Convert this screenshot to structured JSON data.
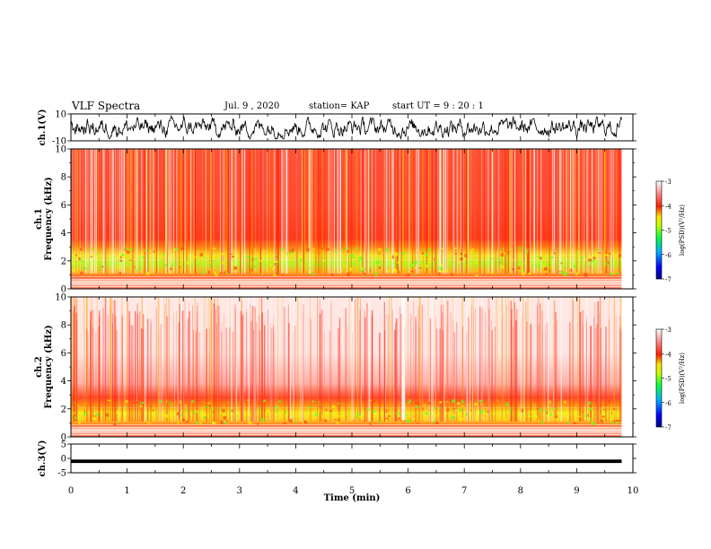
{
  "header": {
    "title": "VLF Spectra",
    "date": "Jul. 9 , 2020",
    "station": "station= KAP",
    "start": "start UT = 9 : 20 : 1"
  },
  "chart_data": [
    {
      "type": "line",
      "panel": "waveform-ch1",
      "ylabel": "ch.1(V)",
      "ylim": [
        -10,
        10
      ],
      "yticks": [
        "10",
        "-10"
      ],
      "xlim": [
        0,
        10
      ],
      "note": "dense noisy voltage trace oscillating roughly between -7 and +7 V"
    },
    {
      "type": "heatmap",
      "panel": "spectrogram-ch1",
      "ylabel": "ch.1\nFrequency (kHz)",
      "ylim": [
        0,
        10
      ],
      "yticks": [
        "10",
        "8",
        "6",
        "4",
        "2",
        "0"
      ],
      "xlim": [
        0,
        10
      ],
      "colorbar": {
        "label": "log(PSD)(V²/Hz)",
        "range": [
          -7,
          -3
        ],
        "ticks": [
          "-3",
          "-4",
          "-5",
          "-6",
          "-7"
        ]
      },
      "bands": [
        {
          "freq_khz": [
            3,
            10
          ],
          "level": -3.9,
          "note": "red background"
        },
        {
          "freq_khz": [
            1,
            3
          ],
          "level": -4.5,
          "note": "yellow/green band"
        },
        {
          "freq_khz": [
            0,
            1
          ],
          "level": -3.8,
          "note": "striped low-frequency lines"
        }
      ]
    },
    {
      "type": "heatmap",
      "panel": "spectrogram-ch2",
      "ylabel": "ch.2\nFrequency (kHz)",
      "ylim": [
        0,
        10
      ],
      "yticks": [
        "10",
        "8",
        "6",
        "4",
        "2",
        "0"
      ],
      "xlim": [
        0,
        10
      ],
      "colorbar": {
        "label": "log(PSD)(V²/Hz)",
        "range": [
          -7,
          -3
        ],
        "ticks": [
          "-3",
          "-4",
          "-5",
          "-6",
          "-7"
        ]
      },
      "bands": [
        {
          "freq_khz": [
            3,
            10
          ],
          "level": -3.2,
          "note": "pale pink/white background with red streaks"
        },
        {
          "freq_khz": [
            1,
            2.8
          ],
          "level": -4.4,
          "note": "yellow/orange band"
        },
        {
          "freq_khz": [
            0,
            1
          ],
          "level": -3.8,
          "note": "striped low-frequency lines"
        }
      ]
    },
    {
      "type": "line",
      "panel": "waveform-ch3",
      "ylabel": "ch.3(V)",
      "ylim": [
        -5,
        5
      ],
      "yticks": [
        "5",
        "0",
        "-5"
      ],
      "xlim": [
        0,
        10
      ],
      "note": "thick band around -1 V"
    }
  ],
  "xaxis": {
    "label": "Time (min)",
    "ticks": [
      "0",
      "1",
      "2",
      "3",
      "4",
      "5",
      "6",
      "7",
      "8",
      "9",
      "10"
    ]
  },
  "colors": {
    "trace": "#000000",
    "red": "#ff2a1a",
    "yellow": "#ffe000",
    "green": "#33ee11"
  }
}
